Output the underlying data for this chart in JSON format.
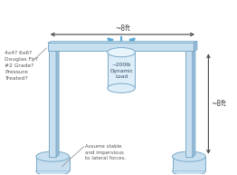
{
  "bg_color": "#ffffff",
  "beam_color": "#c8dff0",
  "beam_edge_color": "#7aaac8",
  "beam_dark_color": "#9bbdd8",
  "post_color": "#c8dff0",
  "post_edge_color": "#7aaac8",
  "post_dark_color": "#9bbdd8",
  "base_color": "#c8dff0",
  "base_edge_color": "#7aaac8",
  "cylinder_color": "#ddeef8",
  "cylinder_edge_color": "#7aaac8",
  "arrow_color": "#5aaad8",
  "dim_color": "#444444",
  "text_color": "#555555",
  "left_label": "4x4? 6x6?\nDouglas Fir?\n#2 Grade?\nPressure\nTreated?",
  "top_dim_label": "~8ft",
  "right_dim_label": "~8ft",
  "load_label": "~200lb\nDynamic\nLoad",
  "base_note": "Assume stable\nand impervious\nto lateral forces.",
  "figsize": [
    2.62,
    1.93
  ],
  "dpi": 100
}
